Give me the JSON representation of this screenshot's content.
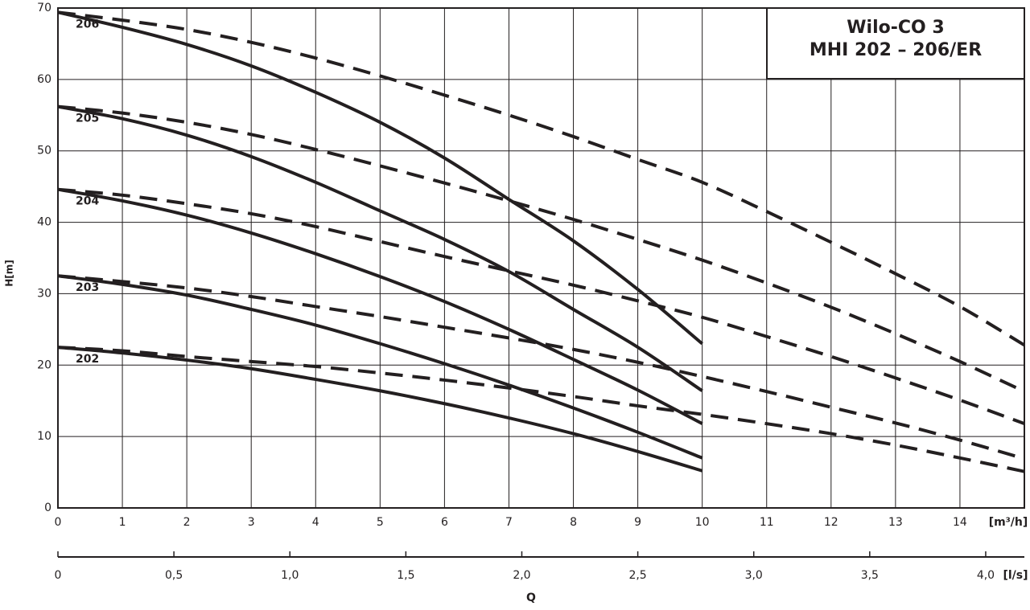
{
  "chart_data": {
    "type": "line",
    "title": "Wilo-CO 3",
    "subtitle": "MHI 202 – 206/ER",
    "ylabel": "H[m]",
    "xunit": "[m³/h]",
    "x2unit": "[l/s]",
    "xlabel": "Q",
    "x": [
      0,
      1,
      2,
      3,
      4,
      5,
      6,
      7,
      8,
      9,
      10,
      11,
      12,
      13,
      14,
      15
    ],
    "xlim": [
      0,
      15
    ],
    "xticks": [
      0,
      1,
      2,
      3,
      4,
      5,
      6,
      7,
      8,
      9,
      10,
      11,
      12,
      13,
      14
    ],
    "ylim": [
      0,
      70
    ],
    "yticks": [
      0,
      10,
      20,
      30,
      40,
      50,
      60,
      70
    ],
    "x2lim": [
      0,
      4.1667
    ],
    "x2ticks": [
      0,
      {
        "value": 0.5,
        "label": "0,5"
      },
      {
        "value": 1,
        "label": "1,0"
      },
      {
        "value": 1.5,
        "label": "1,5"
      },
      {
        "value": 2,
        "label": "2,0"
      },
      {
        "value": 2.5,
        "label": "2,5"
      },
      {
        "value": 3,
        "label": "3,0"
      },
      {
        "value": 3.5,
        "label": "3,5"
      },
      {
        "value": 4,
        "label": "4,0"
      }
    ],
    "grid": true,
    "series": [
      {
        "name": "206",
        "color": "#231f20",
        "dashed": false,
        "values": [
          69.4,
          67.3,
          64.9,
          61.9,
          58.2,
          54.0,
          49.0,
          43.2,
          37.4,
          30.6,
          23.0,
          null,
          null,
          null,
          null,
          null
        ]
      },
      {
        "name": "205",
        "color": "#231f20",
        "dashed": false,
        "values": [
          56.2,
          54.5,
          52.2,
          49.2,
          45.6,
          41.6,
          37.6,
          33.1,
          27.8,
          22.5,
          16.4,
          null,
          null,
          null,
          null,
          null
        ]
      },
      {
        "name": "204",
        "color": "#231f20",
        "dashed": false,
        "values": [
          44.6,
          43.0,
          41.0,
          38.5,
          35.6,
          32.4,
          28.9,
          25.0,
          20.8,
          16.5,
          11.8,
          null,
          null,
          null,
          null,
          null
        ]
      },
      {
        "name": "203",
        "color": "#231f20",
        "dashed": false,
        "values": [
          32.5,
          31.3,
          29.8,
          27.8,
          25.6,
          23.0,
          20.2,
          17.2,
          14.0,
          10.6,
          7.0,
          null,
          null,
          null,
          null,
          null
        ]
      },
      {
        "name": "202",
        "color": "#231f20",
        "dashed": false,
        "values": [
          22.5,
          21.7,
          20.7,
          19.5,
          18.0,
          16.4,
          14.6,
          12.6,
          10.4,
          7.9,
          5.2,
          null,
          null,
          null,
          null,
          null
        ]
      },
      {
        "color": "#231f20",
        "dashed": true,
        "values": [
          69.4,
          68.3,
          67.0,
          65.2,
          63.0,
          60.5,
          57.8,
          55.0,
          52.0,
          48.8,
          45.6,
          41.5,
          37.2,
          32.8,
          28.2,
          22.8
        ]
      },
      {
        "color": "#231f20",
        "dashed": true,
        "values": [
          56.2,
          55.3,
          54.0,
          52.3,
          50.2,
          47.9,
          45.5,
          43.0,
          40.4,
          37.6,
          34.7,
          31.5,
          28.1,
          24.4,
          20.5,
          16.3
        ]
      },
      {
        "color": "#231f20",
        "dashed": true,
        "values": [
          44.6,
          43.8,
          42.6,
          41.2,
          39.4,
          37.3,
          35.2,
          33.2,
          31.2,
          29.0,
          26.7,
          24.0,
          21.2,
          18.2,
          15.1,
          11.8
        ]
      },
      {
        "color": "#231f20",
        "dashed": true,
        "values": [
          32.5,
          31.7,
          30.8,
          29.6,
          28.2,
          26.8,
          25.3,
          23.8,
          22.2,
          20.4,
          18.4,
          16.3,
          14.1,
          11.9,
          9.5,
          6.9
        ]
      },
      {
        "color": "#231f20",
        "dashed": true,
        "values": [
          22.5,
          22.0,
          21.2,
          20.5,
          19.8,
          18.9,
          17.9,
          16.8,
          15.6,
          14.3,
          13.1,
          11.8,
          10.4,
          8.8,
          7.0,
          5.1
        ]
      }
    ]
  }
}
